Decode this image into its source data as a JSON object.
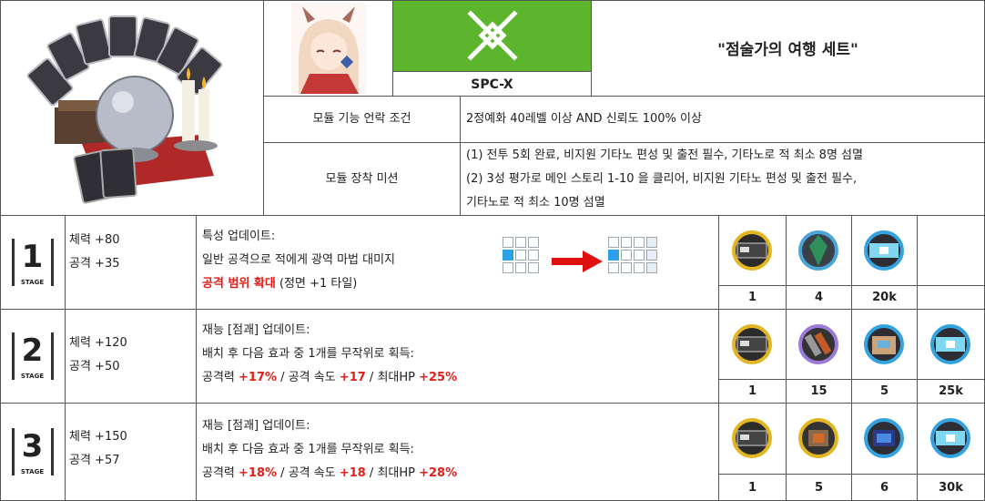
{
  "header": {
    "title": "\"점술가의 여행 세트\"",
    "module_code": "SPC-X"
  },
  "conditions": {
    "unlock_label": "모듈 기능 언락 조건",
    "unlock_value": "2정예화 40레벨 이상 AND 신뢰도 100% 이상",
    "mission_label": "모듈 장착 미션",
    "mission_lines": [
      "(1) 전투 5회 완료, 비지원 기타노 편성 및 출전 필수, 기타노로 적 최소 8명 섬멸",
      "(2) 3성 평가로 메인 스토리 1-10 을 클리어, 비지원 기타노 편성 및 출전 필수,",
      "기타노로 적 최소 10명 섬멸"
    ]
  },
  "stages": [
    {
      "stage_num": "1",
      "stage_word": "STAGE",
      "stats": [
        "체력 +80",
        "공격 +35"
      ],
      "desc_1": "특성 업데이트:",
      "desc_2": "일반 공격으로 적에게 광역 마법 대미지",
      "desc_3_red": "공격 범위 확대",
      "desc_3_rest": " (정면 +1 타일)",
      "materials": [
        {
          "icon": "module-data-block-icon",
          "qty": "1"
        },
        {
          "icon": "crystal-component-icon",
          "qty": "4"
        },
        {
          "icon": "lmd-bills-icon",
          "qty": "20k"
        }
      ]
    },
    {
      "stage_num": "2",
      "stage_word": "STAGE",
      "stats": [
        "체력 +120",
        "공격 +50"
      ],
      "desc_1": "재능 [점괘] 업데이트:",
      "desc_2": "배치 후 다음 효과 중 1개를 무작위로 획득:",
      "effects": [
        {
          "label": "공격력 ",
          "value": "+17%",
          "sep": " / "
        },
        {
          "label": "공격 속도 ",
          "value": "+17",
          "sep": " / "
        },
        {
          "label": "최대HP ",
          "value": "+25%",
          "sep": ""
        }
      ],
      "materials": [
        {
          "icon": "module-data-block-icon",
          "qty": "1"
        },
        {
          "icon": "cutting-fluid-icon",
          "qty": "15"
        },
        {
          "icon": "data-supplement-box-icon",
          "qty": "5"
        },
        {
          "icon": "lmd-bills-icon",
          "qty": "25k"
        }
      ]
    },
    {
      "stage_num": "3",
      "stage_word": "STAGE",
      "stats": [
        "체력 +150",
        "공격 +57"
      ],
      "desc_1": "재능 [점괘] 업데이트:",
      "desc_2": "배치 후 다음 효과 중 1개를 무작위로 획득:",
      "effects": [
        {
          "label": "공격력 ",
          "value": "+18%",
          "sep": " / "
        },
        {
          "label": "공격 속도 ",
          "value": "+18",
          "sep": " / "
        },
        {
          "label": "최대HP ",
          "value": "+28%",
          "sep": ""
        }
      ],
      "materials": [
        {
          "icon": "module-data-block-icon",
          "qty": "1"
        },
        {
          "icon": "crystalline-circuit-icon",
          "qty": "5"
        },
        {
          "icon": "polymerization-preparation-icon",
          "qty": "6"
        },
        {
          "icon": "lmd-bills-icon",
          "qty": "30k"
        }
      ]
    }
  ],
  "colors": {
    "module_green": "#5cb52d",
    "highlight_red": "#e0201a",
    "range_blue": "#29a0e8",
    "rarity_gold": "#e2b522",
    "rarity_purple": "#9b7ad8",
    "rarity_blue": "#35a2e0"
  }
}
